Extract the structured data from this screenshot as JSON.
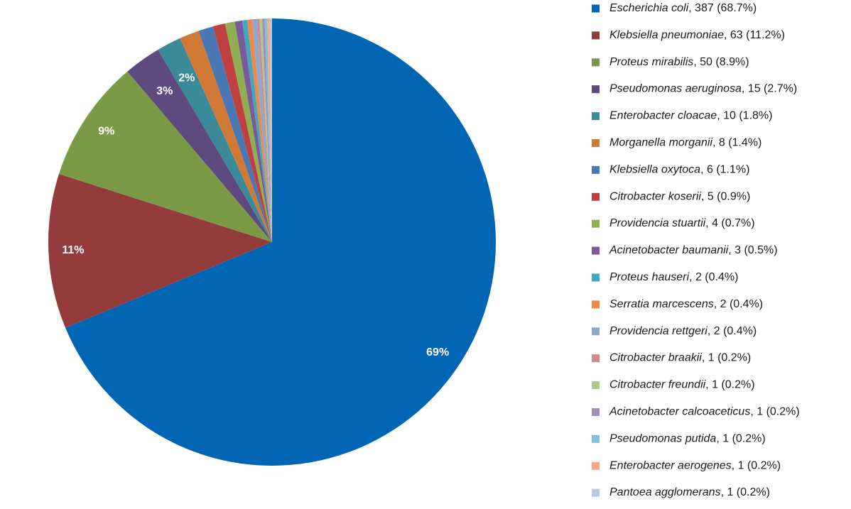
{
  "chart_data": {
    "type": "pie",
    "categories": [
      "Escherichia coli",
      "Klebsiella pneumoniae",
      "Proteus mirabilis",
      "Pseudomonas aeruginosa",
      "Enterobacter cloacae",
      "Morganella morganii",
      "Klebsiella oxytoca",
      "Citrobacter koserii",
      "Providencia stuartii",
      "Acinetobacter baumanii",
      "Proteus hauseri",
      "Serratia marcescens",
      "Providencia rettgeri",
      "Citrobacter braakii",
      "Citrobacter freundii",
      "Acinetobacter calcoaceticus",
      "Pseudomonas putida",
      "Enterobacter aerogenes",
      "Pantoea agglomerans"
    ],
    "values": [
      387,
      63,
      50,
      15,
      10,
      8,
      6,
      5,
      4,
      3,
      2,
      2,
      2,
      1,
      1,
      1,
      1,
      1,
      1
    ],
    "value_labels": [
      ", 387 (68.7%)",
      ", 63 (11.2%)",
      ", 50 (8.9%)",
      ", 15 (2.7%)",
      ", 10 (1.8%)",
      ", 8 (1.4%)",
      ", 6 (1.1%)",
      ", 5 (0.9%)",
      ", 4 (0.7%)",
      ", 3 (0.5%)",
      ", 2 (0.4%)",
      ", 2 (0.4%)",
      ", 2 (0.4%)",
      ", 1 (0.2%)",
      ", 1 (0.2%)",
      ", 1 (0.2%)",
      ", 1 (0.2%)",
      ", 1 (0.2%)",
      ", 1 (0.2%)"
    ],
    "pie_labels": [
      "69%",
      "11%",
      "9%",
      "3%",
      "2%",
      null,
      null,
      null,
      null,
      null,
      null,
      null,
      null,
      null,
      null,
      null,
      null,
      null,
      null
    ],
    "colors": [
      "#0066b3",
      "#943c3c",
      "#7a9a45",
      "#5e4a7e",
      "#3a8a99",
      "#d07a35",
      "#4a78b5",
      "#c04040",
      "#8fb050",
      "#7a5a9a",
      "#40a8c0",
      "#f08a40",
      "#8aa8d0",
      "#d08a8a",
      "#b0c890",
      "#a090b8",
      "#80c0d8",
      "#f8a880",
      "#b8c8e0"
    ],
    "legend_position": "right"
  }
}
